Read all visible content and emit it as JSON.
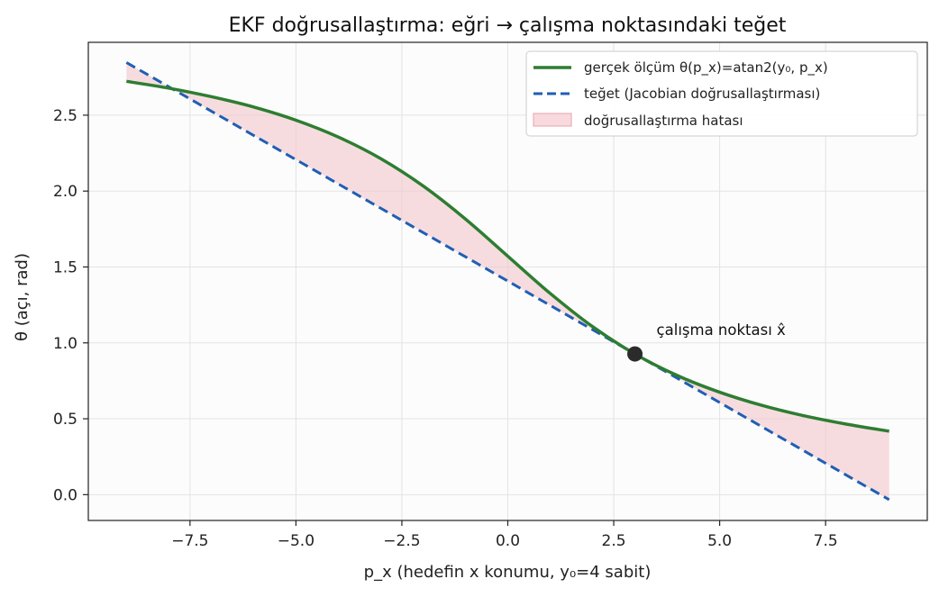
{
  "chart_data": {
    "type": "line",
    "title": "EKF doğrusallaştırma: eğri → çalışma noktasındaki teğet",
    "xlabel": "p_x  (hedefin x konumu, y₀=4 sabit)",
    "ylabel": "θ  (açı, rad)",
    "xlim": [
      -9.9,
      9.9
    ],
    "ylim": [
      -0.17,
      2.98
    ],
    "xticks": [
      -7.5,
      -5.0,
      -2.5,
      0.0,
      2.5,
      5.0,
      7.5
    ],
    "xtick_labels": [
      "−7.5",
      "−5.0",
      "−2.5",
      "0.0",
      "2.5",
      "5.0",
      "7.5"
    ],
    "yticks": [
      0.0,
      0.5,
      1.0,
      1.5,
      2.0,
      2.5
    ],
    "ytick_labels": [
      "0.0",
      "0.5",
      "1.0",
      "1.5",
      "2.0",
      "2.5"
    ],
    "grid": true,
    "legend_position": "top-right",
    "series": [
      {
        "name": "gerçek ölçüm  θ(p_x)=atan2(y₀, p_x)",
        "style": "solid",
        "color": "#2e7d32",
        "x": [
          -9,
          -8,
          -7,
          -6,
          -5,
          -4,
          -3,
          -2,
          -1,
          0,
          1,
          2,
          3,
          4,
          5,
          6,
          7,
          8,
          9
        ],
        "y": [
          2.723,
          2.678,
          2.622,
          2.554,
          2.467,
          2.356,
          2.214,
          2.034,
          1.816,
          1.571,
          1.326,
          1.107,
          0.927,
          0.785,
          0.675,
          0.588,
          0.519,
          0.464,
          0.418
        ]
      },
      {
        "name": "teğet (Jacobian doğrusallaştırması)",
        "style": "dashed",
        "color": "#1f5fb4",
        "x": [
          -9,
          9
        ],
        "y": [
          2.847,
          -0.033
        ]
      }
    ],
    "fill": {
      "name": "doğrusallaştırma hatası",
      "between": [
        "gerçek ölçüm  θ(p_x)=atan2(y₀, p_x)",
        "teğet (Jacobian doğrusallaştırması)"
      ],
      "color": "#f4c6cc"
    },
    "operating_point": {
      "x": 3,
      "y": 0.927,
      "label": "çalışma noktası  x̂",
      "color": "#333333"
    },
    "colors": {
      "curve": "#2e7d32",
      "tangent": "#1f5fb4",
      "fill": "#f4c6cc",
      "point": "#2b2b2b"
    }
  }
}
